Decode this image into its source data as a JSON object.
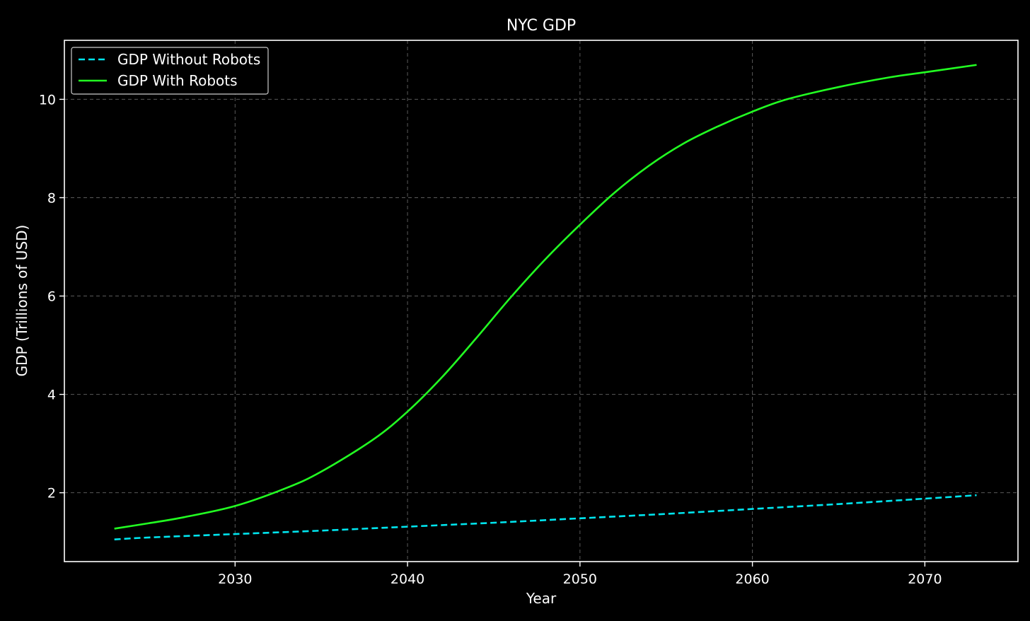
{
  "colors": {
    "background": "#000000",
    "axes": "#ffffff",
    "grid": "#5a5a5a",
    "without_robots": "#00e5ee",
    "with_robots": "#22ff22"
  },
  "chart_data": {
    "type": "line",
    "title": "NYC GDP",
    "xlabel": "Year",
    "ylabel": "GDP (Trillions of USD)",
    "xlim": [
      2020.1,
      2075.4
    ],
    "ylim": [
      0.6,
      11.2
    ],
    "xticks": [
      2030,
      2040,
      2050,
      2060,
      2070
    ],
    "yticks": [
      2,
      4,
      6,
      8,
      10
    ],
    "grid": true,
    "grid_style": "dashed",
    "legend_position": "top-left",
    "series": [
      {
        "name": "GDP Without Robots",
        "style": "dashed",
        "color": "#00e5ee",
        "x": [
          2023,
          2025,
          2030,
          2035,
          2040,
          2045,
          2050,
          2055,
          2060,
          2065,
          2070,
          2073
        ],
        "y": [
          1.05,
          1.09,
          1.16,
          1.23,
          1.31,
          1.39,
          1.48,
          1.57,
          1.67,
          1.77,
          1.88,
          1.95
        ]
      },
      {
        "name": "GDP With Robots",
        "style": "solid",
        "color": "#22ff22",
        "x": [
          2023,
          2025,
          2027,
          2030,
          2033,
          2035,
          2038,
          2040,
          2042,
          2044,
          2046,
          2048,
          2050,
          2052,
          2054,
          2056,
          2058,
          2060,
          2062,
          2065,
          2068,
          2070,
          2073
        ],
        "y": [
          1.27,
          1.38,
          1.5,
          1.73,
          2.1,
          2.43,
          3.08,
          3.65,
          4.35,
          5.15,
          5.98,
          6.75,
          7.45,
          8.1,
          8.65,
          9.1,
          9.45,
          9.75,
          10.0,
          10.25,
          10.45,
          10.55,
          10.7
        ]
      }
    ]
  }
}
